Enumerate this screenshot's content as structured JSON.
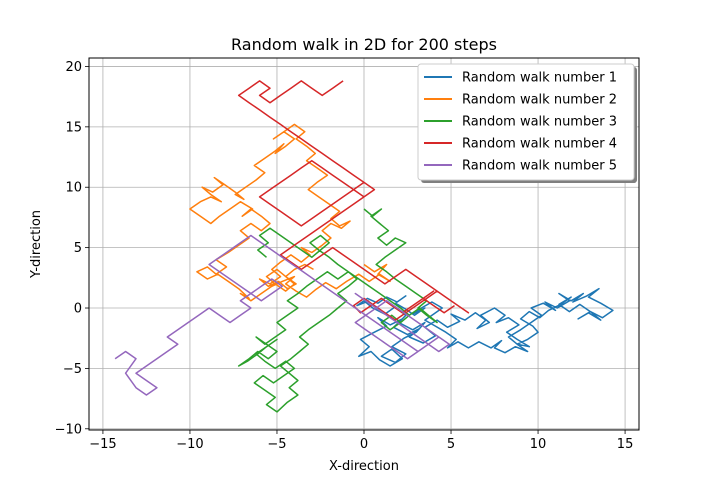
{
  "chart_data": {
    "type": "line",
    "title": "Random walk in 2D for 200 steps",
    "xlabel": "X-direction",
    "ylabel": "Y-direction",
    "xlim": [
      -15.8,
      15.8
    ],
    "ylim": [
      -10.1,
      20.7
    ],
    "xticks": [
      -15,
      -10,
      -5,
      0,
      5,
      10,
      15
    ],
    "yticks": [
      -10,
      -5,
      0,
      5,
      10,
      15,
      20
    ],
    "grid": true,
    "legend_position": "top-right",
    "series": [
      {
        "name": "Random walk number 1",
        "color": "#1f77b4",
        "x": [
          0,
          0.5,
          1.2,
          1.8,
          2.4,
          2.0,
          2.8,
          3.5,
          3.0,
          2.3,
          1.6,
          2.4,
          1.8,
          1.0,
          1.6,
          2.2,
          1.5,
          0.9,
          0.4,
          -0.3,
          0.3,
          -0.2,
          0.6,
          1.3,
          0.8,
          1.5,
          2.2,
          1.7,
          2.5,
          3.2,
          2.6,
          3.4,
          4.1,
          3.5,
          4.2,
          4.8,
          5.5,
          5.0,
          5.8,
          6.4,
          7.0,
          6.5,
          7.2,
          6.7,
          7.5,
          8.1,
          7.6,
          8.3,
          8.9,
          8.2,
          8.8,
          9.5,
          8.8,
          8.3,
          9.0,
          9.6,
          10.2,
          9.6,
          10.3,
          11.0,
          10.4,
          11.1,
          11.8,
          11.2,
          11.9,
          12.6,
          12.0,
          12.8,
          13.5,
          12.9,
          13.6,
          14.3,
          13.7,
          13.0,
          13.6,
          12.9,
          12.3,
          13.0,
          12.4,
          11.8,
          11.2,
          11.9,
          11.3,
          10.6,
          10.1,
          9.5,
          9.0,
          9.7,
          10.0,
          9.4,
          8.8,
          9.4,
          8.7,
          8.1,
          7.5,
          7.9,
          7.3,
          6.6,
          6.0,
          5.4,
          4.8,
          5.3,
          4.7,
          4.1,
          3.5,
          4.0,
          4.5,
          3.9,
          3.3,
          2.8,
          3.5,
          2.9,
          2.4,
          1.8,
          2.4,
          1.9,
          1.3,
          0.8,
          0.2,
          -0.4,
          0.3
        ],
        "y": [
          0.6,
          0.0,
          -0.5,
          0.1,
          -0.6,
          -1.2,
          -1.8,
          -1.2,
          -2.0,
          -2.5,
          -3.2,
          -3.8,
          -4.5,
          -4.0,
          -3.4,
          -4.2,
          -4.8,
          -4.3,
          -3.6,
          -4.0,
          -3.2,
          -2.6,
          -2.0,
          -1.5,
          -0.8,
          -1.4,
          -0.9,
          -1.6,
          -2.2,
          -1.7,
          -2.4,
          -2.9,
          -2.3,
          -1.6,
          -1.0,
          -1.6,
          -1.1,
          -0.5,
          -1.0,
          -0.4,
          -1.0,
          -1.7,
          -1.2,
          -0.6,
          0.0,
          -0.6,
          -1.2,
          -0.8,
          -1.4,
          -2.0,
          -2.6,
          -3.2,
          -3.0,
          -2.4,
          -1.8,
          -1.2,
          -0.6,
          0.0,
          0.4,
          -0.2,
          0.5,
          0.0,
          0.6,
          1.2,
          0.6,
          1.2,
          0.5,
          1.0,
          1.6,
          0.9,
          0.4,
          -0.2,
          -0.8,
          -0.3,
          -1.0,
          -0.4,
          -0.9,
          -0.3,
          0.3,
          -0.3,
          0.3,
          0.9,
          0.3,
          -0.2,
          -0.8,
          -0.3,
          -0.9,
          -1.5,
          -2.0,
          -2.6,
          -3.0,
          -3.6,
          -3.2,
          -3.7,
          -3.3,
          -2.7,
          -3.3,
          -2.8,
          -3.3,
          -2.8,
          -3.3,
          -2.6,
          -2.0,
          -1.5,
          -1.0,
          -0.5,
          0.0,
          0.5,
          0.0,
          -0.5,
          0.0,
          -0.6,
          -0.1,
          0.4,
          1.0,
          0.5,
          0.9,
          0.4,
          0.8,
          0.2,
          0.6
        ]
      },
      {
        "name": "Random walk number 2",
        "color": "#ff7f0e",
        "x": [
          0,
          0.6,
          1.3,
          0.8,
          1.5,
          0.9,
          0.3,
          -0.3,
          -1.0,
          -1.6,
          -2.2,
          -2.8,
          -3.3,
          -3.9,
          -4.5,
          -4.0,
          -4.7,
          -5.3,
          -5.9,
          -6.5,
          -7.1,
          -6.6,
          -7.2,
          -7.8,
          -8.4,
          -9.0,
          -9.6,
          -9.0,
          -8.5,
          -7.9,
          -8.5,
          -7.8,
          -7.2,
          -6.6,
          -7.1,
          -6.5,
          -5.9,
          -5.4,
          -5.9,
          -6.5,
          -7.0,
          -6.4,
          -7.1,
          -7.7,
          -8.3,
          -8.8,
          -9.4,
          -10.0,
          -9.4,
          -8.8,
          -8.2,
          -8.8,
          -9.3,
          -8.7,
          -8.1,
          -8.6,
          -8.0,
          -7.4,
          -6.9,
          -7.4,
          -6.8,
          -6.2,
          -5.7,
          -6.3,
          -5.7,
          -5.1,
          -4.6,
          -5.1,
          -4.5,
          -4.0,
          -4.6,
          -5.2,
          -4.6,
          -4.0,
          -3.4,
          -3.9,
          -3.3,
          -2.8,
          -3.3,
          -2.7,
          -2.1,
          -2.7,
          -3.2,
          -2.6,
          -2.0,
          -1.4,
          -1.9,
          -1.4,
          -0.8,
          -1.3,
          -1.9,
          -2.4,
          -1.9,
          -2.4,
          -3.0,
          -3.6,
          -3.1,
          -3.6,
          -4.2,
          -4.8,
          -5.3,
          -4.8,
          -5.4,
          -6.0,
          -5.5,
          -4.9,
          -4.4,
          -3.9,
          -4.5,
          -5.0,
          -5.6,
          -5.1,
          -4.5,
          -4.0,
          -4.5,
          -4.0,
          -3.4,
          -2.9
        ],
        "y": [
          3.6,
          3.0,
          3.6,
          2.8,
          2.2,
          2.8,
          2.2,
          2.8,
          2.2,
          1.6,
          2.1,
          1.5,
          0.9,
          1.4,
          2.0,
          2.6,
          2.2,
          1.8,
          1.2,
          0.6,
          1.2,
          0.8,
          1.6,
          2.2,
          2.8,
          2.4,
          3.0,
          3.4,
          2.8,
          3.4,
          4.0,
          4.6,
          5.2,
          5.8,
          6.4,
          7.0,
          6.4,
          7.0,
          7.6,
          8.2,
          7.6,
          8.2,
          8.8,
          8.2,
          7.6,
          7.0,
          7.6,
          8.2,
          8.8,
          9.2,
          8.8,
          9.4,
          10.0,
          9.6,
          10.2,
          10.8,
          10.2,
          9.6,
          9.0,
          9.4,
          10.0,
          10.6,
          11.2,
          11.8,
          12.4,
          13.0,
          13.6,
          12.8,
          13.4,
          14.0,
          14.6,
          14.0,
          14.6,
          15.2,
          14.6,
          14.0,
          13.4,
          12.8,
          12.2,
          11.6,
          11.0,
          10.4,
          9.8,
          9.2,
          8.6,
          8.0,
          7.4,
          6.8,
          7.2,
          6.6,
          7.0,
          6.4,
          5.8,
          5.2,
          4.6,
          5.0,
          4.4,
          3.8,
          4.4,
          3.8,
          3.2,
          2.6,
          2.0,
          2.4,
          1.8,
          2.2,
          1.6,
          2.0,
          2.6,
          3.2,
          2.6,
          2.0,
          1.4,
          2.0,
          2.6,
          3.2,
          3.6,
          3.2
        ]
      },
      {
        "name": "Random walk number 3",
        "color": "#2ca02c",
        "x": [
          0,
          0.5,
          1.0,
          0.4,
          0.9,
          1.4,
          0.8,
          1.3,
          1.8,
          2.4,
          1.8,
          1.2,
          0.7,
          1.3,
          1.8,
          2.4,
          3.0,
          3.6,
          3.1,
          3.6,
          4.2,
          3.7,
          3.2,
          2.6,
          2.1,
          1.6,
          1.0,
          1.5,
          2.1,
          2.6,
          2.1,
          1.5,
          0.9,
          0.3,
          -0.3,
          -0.9,
          -1.5,
          -2.1,
          -2.7,
          -3.3,
          -3.8,
          -4.4,
          -3.8,
          -4.4,
          -5.0,
          -4.5,
          -5.1,
          -5.7,
          -6.2,
          -5.6,
          -5.0,
          -5.5,
          -6.1,
          -6.6,
          -7.2,
          -6.7,
          -6.1,
          -5.6,
          -5.0,
          -5.6,
          -6.2,
          -5.7,
          -5.1,
          -4.5,
          -4.0,
          -4.6,
          -5.2,
          -5.8,
          -6.3,
          -5.7,
          -5.1,
          -5.6,
          -5.0,
          -4.4,
          -3.8,
          -4.3,
          -3.8,
          -4.3,
          -4.8,
          -4.2,
          -3.7,
          -3.2,
          -3.7,
          -3.2,
          -2.6,
          -2.0,
          -1.5,
          -1.0,
          -1.5,
          -0.9,
          -0.4,
          -0.9,
          -1.5,
          -2.0,
          -2.6,
          -3.1,
          -2.5,
          -2.0,
          -2.5,
          -3.0,
          -3.6,
          -4.2,
          -4.8,
          -5.4,
          -6.0,
          -5.5,
          -6.1,
          -5.6
        ],
        "y": [
          8.2,
          7.6,
          8.2,
          7.6,
          7.0,
          6.4,
          5.8,
          5.2,
          5.8,
          5.4,
          4.8,
          4.2,
          3.6,
          3.0,
          2.4,
          1.8,
          1.2,
          0.6,
          0.0,
          -0.6,
          -1.2,
          -0.6,
          0.0,
          -0.6,
          -1.2,
          -0.6,
          -1.2,
          -1.8,
          -1.2,
          -0.6,
          0.0,
          0.6,
          1.2,
          1.8,
          2.4,
          3.0,
          2.4,
          3.0,
          2.4,
          1.8,
          1.2,
          0.6,
          0.0,
          -0.6,
          -1.2,
          -1.8,
          -2.4,
          -3.0,
          -2.4,
          -3.0,
          -3.6,
          -4.2,
          -3.6,
          -4.2,
          -4.8,
          -4.4,
          -3.8,
          -3.2,
          -2.6,
          -3.2,
          -3.8,
          -4.4,
          -5.0,
          -4.4,
          -5.0,
          -5.6,
          -6.2,
          -5.6,
          -6.2,
          -6.8,
          -7.4,
          -8.0,
          -8.6,
          -7.8,
          -7.2,
          -6.6,
          -6.0,
          -5.4,
          -4.8,
          -4.2,
          -3.6,
          -3.0,
          -2.4,
          -1.8,
          -1.2,
          -0.6,
          0.0,
          0.6,
          1.2,
          1.8,
          2.4,
          3.0,
          3.6,
          4.2,
          4.8,
          5.4,
          6.0,
          5.4,
          4.8,
          4.2,
          4.8,
          5.4,
          6.0,
          6.6,
          6.0,
          5.4,
          4.8,
          4.2
        ]
      },
      {
        "name": "Random walk number 4",
        "color": "#d62728",
        "x": [
          -1.2,
          -1.8,
          -2.4,
          -3.0,
          -2.4,
          -3.0,
          -3.6,
          -4.2,
          -4.8,
          -5.4,
          -6.0,
          -5.4,
          -6.0,
          -6.6,
          -7.2,
          -6.6,
          -6.0,
          -5.4,
          -4.8,
          -4.2,
          -3.6,
          -3.0,
          -2.4,
          -1.8,
          -1.2,
          -0.6,
          0.0,
          0.6,
          0.0,
          -0.6,
          -1.2,
          -1.8,
          -2.4,
          -3.0,
          -3.6,
          -4.2,
          -4.8,
          -5.4,
          -6.0,
          -5.4,
          -4.8,
          -4.2,
          -3.6,
          -3.0,
          -2.4,
          -1.8,
          -1.2,
          -0.6,
          0.0,
          0.6,
          0.0,
          -0.6,
          -1.2,
          -1.8,
          -2.4,
          -3.0,
          -3.6,
          -4.2,
          -4.8,
          -4.2,
          -3.6,
          -3.0,
          -2.4,
          -1.8,
          -1.2,
          -0.6,
          0.0,
          0.6,
          1.2,
          1.8,
          2.4,
          3.0,
          3.6,
          4.2,
          4.8,
          5.4,
          6.0,
          5.4,
          4.8,
          4.2,
          3.6,
          3.0,
          2.4,
          1.8,
          1.2,
          0.6,
          0.0,
          -0.6,
          -0.2,
          0.4,
          1.0,
          1.6,
          2.2,
          2.8,
          3.4,
          4.0,
          3.4,
          4.0,
          4.6,
          5.2
        ],
        "y": [
          18.8,
          18.2,
          17.6,
          18.2,
          17.6,
          18.2,
          18.8,
          18.2,
          17.6,
          17.0,
          17.6,
          18.2,
          18.8,
          18.2,
          17.6,
          17.0,
          16.4,
          15.8,
          15.2,
          14.6,
          14.0,
          13.4,
          12.8,
          12.2,
          11.6,
          11.0,
          10.4,
          9.8,
          9.2,
          9.8,
          10.4,
          11.0,
          11.6,
          12.2,
          11.6,
          11.0,
          10.4,
          9.8,
          9.2,
          8.6,
          8.0,
          7.4,
          6.8,
          7.4,
          8.0,
          8.6,
          9.2,
          9.8,
          10.4,
          9.8,
          9.2,
          8.6,
          8.0,
          7.4,
          6.8,
          6.2,
          5.6,
          5.0,
          4.4,
          3.8,
          3.2,
          3.8,
          4.4,
          5.0,
          4.4,
          3.8,
          3.2,
          2.6,
          2.0,
          2.6,
          3.2,
          2.6,
          2.0,
          1.4,
          0.8,
          0.2,
          -0.4,
          0.2,
          0.8,
          1.4,
          0.8,
          0.2,
          -0.4,
          -1.0,
          -0.4,
          0.2,
          0.8,
          0.2,
          -0.4,
          0.2,
          0.8,
          0.2,
          -0.4,
          0.2,
          0.8,
          1.4,
          0.8,
          0.2,
          -0.4,
          0.2
        ]
      },
      {
        "name": "Random walk number 5",
        "color": "#9467bd",
        "x": [
          -14.3,
          -13.7,
          -13.1,
          -13.7,
          -13.1,
          -12.5,
          -13.1,
          -12.5,
          -11.9,
          -12.5,
          -13.1,
          -12.5,
          -11.9,
          -11.3,
          -10.7,
          -11.3,
          -10.7,
          -10.1,
          -9.5,
          -8.9,
          -8.3,
          -7.7,
          -7.1,
          -6.5,
          -7.1,
          -6.5,
          -5.9,
          -5.3,
          -4.7,
          -5.3,
          -5.9,
          -6.5,
          -7.1,
          -7.7,
          -8.3,
          -8.9,
          -8.3,
          -7.7,
          -7.1,
          -6.5,
          -5.9,
          -5.3,
          -4.7,
          -4.1,
          -3.5,
          -2.9,
          -2.3,
          -1.7,
          -1.1,
          -0.5,
          0.1,
          0.7,
          1.3,
          1.9,
          2.5,
          3.1,
          3.7,
          3.1,
          2.5,
          1.9,
          1.3,
          0.7,
          0.1,
          -0.5,
          0.1,
          0.7,
          1.3,
          1.9,
          2.5,
          3.1,
          3.7,
          4.3,
          4.9,
          4.3,
          3.7,
          3.1,
          2.5,
          1.9,
          1.3,
          0.7,
          0.1,
          -0.5,
          0.1,
          0.7,
          1.3,
          1.9,
          2.5,
          3.1,
          3.7,
          4.3
        ],
        "y": [
          -4.2,
          -3.6,
          -4.2,
          -5.4,
          -6.6,
          -7.2,
          -6.6,
          -7.2,
          -6.6,
          -6.0,
          -5.4,
          -4.8,
          -4.2,
          -3.6,
          -3.0,
          -2.4,
          -1.8,
          -1.2,
          -0.6,
          0.0,
          -0.6,
          -1.2,
          -0.6,
          0.0,
          0.6,
          1.2,
          1.8,
          2.4,
          1.8,
          1.2,
          0.6,
          1.2,
          1.8,
          2.4,
          3.0,
          3.6,
          4.2,
          4.8,
          5.4,
          6.0,
          5.4,
          4.8,
          4.2,
          3.6,
          3.0,
          2.4,
          1.8,
          1.2,
          0.6,
          0.0,
          -0.6,
          -1.2,
          -1.8,
          -2.4,
          -3.0,
          -3.6,
          -3.0,
          -2.4,
          -1.8,
          -1.2,
          -0.6,
          0.0,
          0.6,
          1.2,
          0.6,
          0.0,
          -0.6,
          -1.2,
          -1.8,
          -2.4,
          -3.0,
          -3.6,
          -3.0,
          -2.4,
          -1.8,
          -1.2,
          -0.6,
          0.0,
          0.6,
          0.0,
          -0.6,
          -1.2,
          -1.8,
          -2.4,
          -3.0,
          -3.6,
          -4.2,
          -3.6,
          -3.0,
          -2.4
        ]
      }
    ]
  }
}
